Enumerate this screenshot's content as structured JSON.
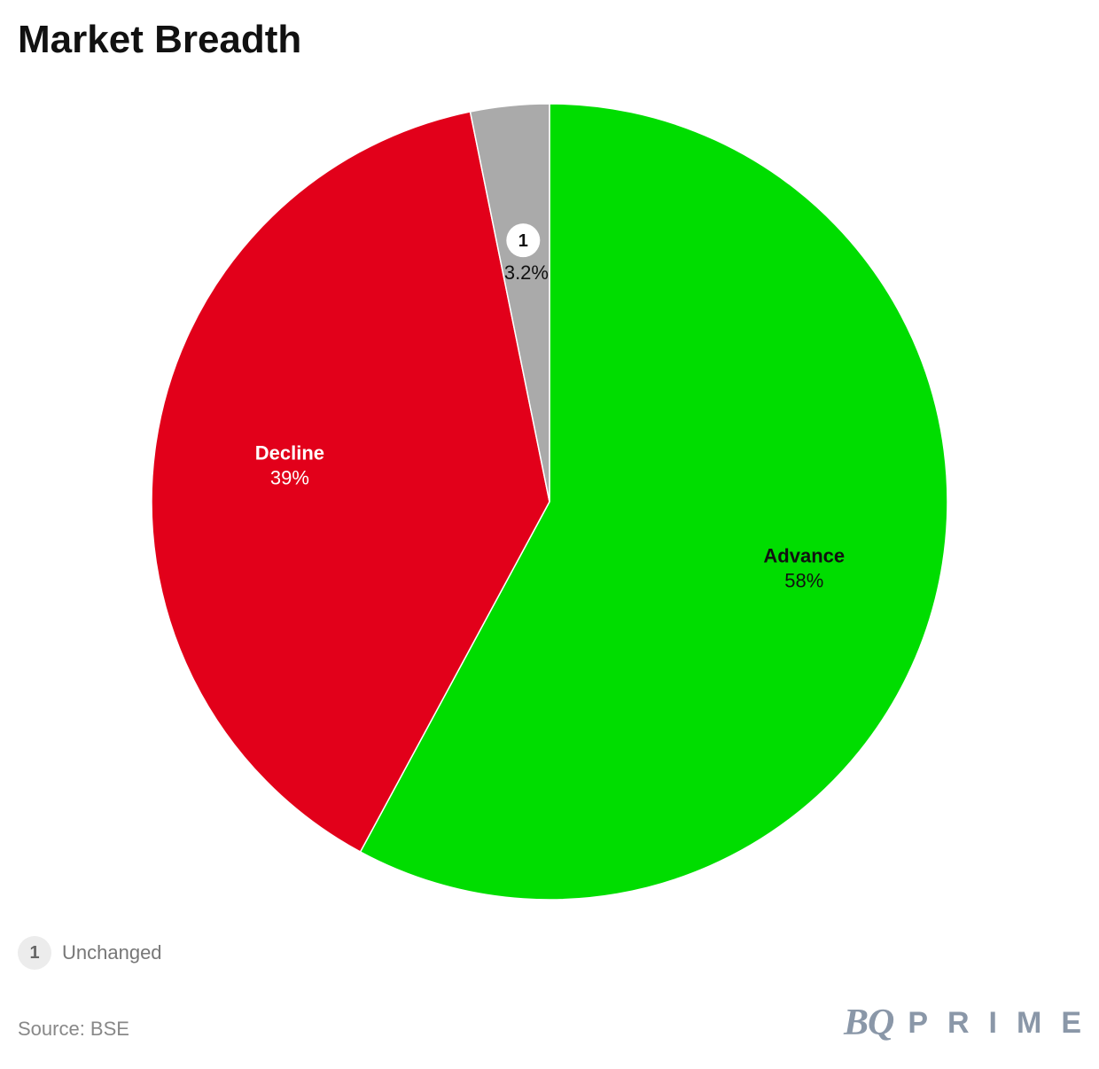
{
  "title": "Market Breadth",
  "chart_data": {
    "type": "pie",
    "title": "Market Breadth",
    "slices": [
      {
        "name": "Advance",
        "value": 58,
        "value_label": "58%",
        "color": "#00dd00",
        "label_color": "#111111",
        "label_mode": "inside"
      },
      {
        "name": "Decline",
        "value": 39,
        "value_label": "39%",
        "color": "#e2001a",
        "label_color": "#ffffff",
        "label_mode": "inside"
      },
      {
        "name": "Unchanged",
        "value": 3.2,
        "value_label": "3.2%",
        "color": "#aaaaaa",
        "label_color": "#111111",
        "label_mode": "marker",
        "marker": "1"
      }
    ],
    "start": "top",
    "direction": "clockwise"
  },
  "footnote": {
    "marker": "1",
    "text": "Unchanged"
  },
  "source": "Source: BSE",
  "brand": {
    "mark": "BQ",
    "word": "PRIME",
    "color": "#8a97a8"
  }
}
